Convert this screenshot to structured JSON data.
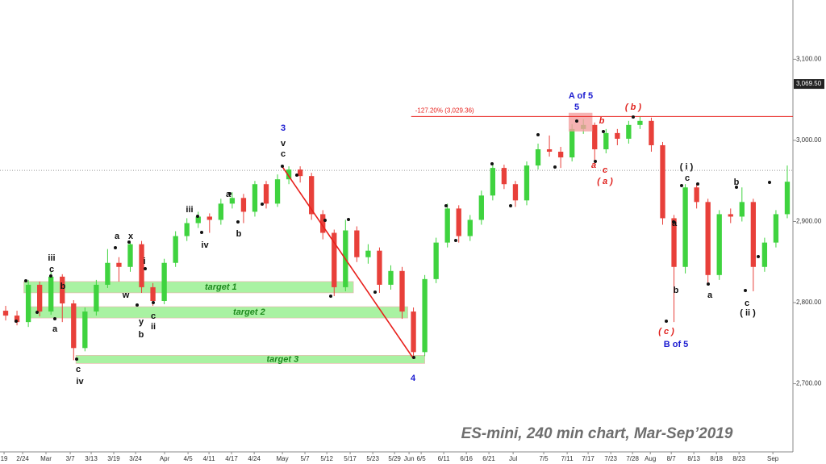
{
  "chart_data": {
    "type": "candlestick",
    "subtitle": "ES-mini, 240 min chart, Mar-Sep’2019",
    "up_color": "#3fd33f",
    "down_color": "#e8403a",
    "xlim": [
      0,
      70
    ],
    "ylim": [
      2616,
      3173
    ],
    "yticks": [
      {
        "value": 3100,
        "label": "3,100.00"
      },
      {
        "value": 3000,
        "label": "3,000.00"
      },
      {
        "value": 2900,
        "label": "2,900.00"
      },
      {
        "value": 2800,
        "label": "2,800.00"
      },
      {
        "value": 2700,
        "label": "2,700.00"
      }
    ],
    "xticks": [
      {
        "value": 0.36,
        "label": "19"
      },
      {
        "value": 2.0,
        "label": "2/24"
      },
      {
        "value": 4.06,
        "label": "Mar"
      },
      {
        "value": 6.2,
        "label": "3/7"
      },
      {
        "value": 8.05,
        "label": "3/13"
      },
      {
        "value": 10.04,
        "label": "3/19"
      },
      {
        "value": 11.97,
        "label": "3/24"
      },
      {
        "value": 14.53,
        "label": "Apr"
      },
      {
        "value": 16.6,
        "label": "4/5"
      },
      {
        "value": 18.45,
        "label": "4/11"
      },
      {
        "value": 20.44,
        "label": "4/17"
      },
      {
        "value": 22.44,
        "label": "4/24"
      },
      {
        "value": 24.93,
        "label": "May"
      },
      {
        "value": 26.92,
        "label": "5/7"
      },
      {
        "value": 28.85,
        "label": "5/12"
      },
      {
        "value": 30.91,
        "label": "5/17"
      },
      {
        "value": 32.91,
        "label": "5/23"
      },
      {
        "value": 34.83,
        "label": "5/29"
      },
      {
        "value": 36.11,
        "label": "Jun"
      },
      {
        "value": 37.18,
        "label": "6/5"
      },
      {
        "value": 39.17,
        "label": "6/11"
      },
      {
        "value": 41.17,
        "label": "6/16"
      },
      {
        "value": 43.16,
        "label": "6/21"
      },
      {
        "value": 45.3,
        "label": "Jul"
      },
      {
        "value": 48.0,
        "label": "7/5"
      },
      {
        "value": 50.07,
        "label": "7/11"
      },
      {
        "value": 51.92,
        "label": "7/17"
      },
      {
        "value": 53.92,
        "label": "7/23"
      },
      {
        "value": 55.84,
        "label": "7/28"
      },
      {
        "value": 57.41,
        "label": "Aug"
      },
      {
        "value": 59.26,
        "label": "8/7"
      },
      {
        "value": 61.25,
        "label": "8/13"
      },
      {
        "value": 63.25,
        "label": "8/18"
      },
      {
        "value": 65.24,
        "label": "8/23"
      },
      {
        "value": 68.23,
        "label": "Sep"
      }
    ],
    "open": [
      2790,
      2784,
      2776,
      2822,
      2789,
      2832,
      2799,
      2744,
      2789,
      2822,
      2849,
      2844,
      2872,
      2819,
      2802,
      2849,
      2882,
      2898,
      2906,
      2902,
      2922,
      2929,
      2912,
      2946,
      2922,
      2952,
      2964,
      2956,
      2909,
      2886,
      2819,
      2889,
      2856,
      2864,
      2822,
      2839,
      2789,
      2739,
      2829,
      2874,
      2916,
      2882,
      2902,
      2932,
      2966,
      2946,
      2926,
      2969,
      2989,
      2986,
      2979,
      3014,
      3019,
      2989,
      3009,
      3002,
      3019,
      3024,
      2994,
      2904,
      2844,
      2942,
      2924,
      2834,
      2909,
      2906,
      2924,
      2844,
      2874,
      2909
    ],
    "high": [
      2796,
      2790,
      2828,
      2826,
      2838,
      2835,
      2803,
      2794,
      2828,
      2866,
      2856,
      2874,
      2876,
      2824,
      2854,
      2888,
      2904,
      2912,
      2910,
      2928,
      2936,
      2934,
      2950,
      2950,
      2958,
      2968,
      2968,
      2960,
      2914,
      2890,
      2902,
      2894,
      2872,
      2868,
      2846,
      2844,
      2794,
      2834,
      2880,
      2922,
      2920,
      2908,
      2938,
      2972,
      2970,
      2950,
      2974,
      2996,
      3006,
      2992,
      3020,
      3026,
      3022,
      3014,
      3014,
      3024,
      3029,
      3028,
      2998,
      2908,
      2946,
      2946,
      2928,
      2914,
      2916,
      2942,
      2928,
      2880,
      2914,
      2969
    ],
    "low": [
      2778,
      2772,
      2770,
      2783,
      2785,
      2776,
      2729,
      2740,
      2784,
      2818,
      2826,
      2838,
      2812,
      2796,
      2798,
      2844,
      2876,
      2892,
      2886,
      2896,
      2916,
      2898,
      2906,
      2916,
      2918,
      2946,
      2948,
      2902,
      2878,
      2808,
      2814,
      2850,
      2848,
      2812,
      2816,
      2780,
      2732,
      2734,
      2824,
      2868,
      2874,
      2876,
      2896,
      2926,
      2940,
      2918,
      2920,
      2964,
      2980,
      2966,
      2974,
      3008,
      2974,
      2984,
      2994,
      2996,
      3014,
      2986,
      2896,
      2776,
      2836,
      2916,
      2822,
      2828,
      2898,
      2900,
      2814,
      2838,
      2868,
      2904
    ],
    "close": [
      2784,
      2776,
      2822,
      2789,
      2832,
      2799,
      2744,
      2789,
      2822,
      2849,
      2844,
      2872,
      2819,
      2802,
      2849,
      2882,
      2898,
      2906,
      2902,
      2922,
      2929,
      2912,
      2946,
      2922,
      2952,
      2964,
      2956,
      2909,
      2886,
      2819,
      2889,
      2856,
      2864,
      2822,
      2839,
      2789,
      2739,
      2829,
      2874,
      2916,
      2882,
      2902,
      2932,
      2966,
      2946,
      2926,
      2969,
      2989,
      2986,
      2979,
      3014,
      3019,
      2989,
      3009,
      3002,
      3019,
      3024,
      2994,
      2904,
      2844,
      2942,
      2924,
      2834,
      2909,
      2906,
      2924,
      2844,
      2874,
      2909,
      2949
    ],
    "last_price": {
      "value": 3069.5,
      "label": "3,069.50"
    },
    "reference_line": 2963,
    "fib_line": {
      "value": 3029.36,
      "label": "-127.20% (3,029.36)",
      "x": [
        36.3,
        70
      ],
      "color": "#e8201c"
    },
    "fib_box": {
      "x": [
        50.2,
        52.3
      ],
      "y": [
        3011,
        3034
      ],
      "color": "#f4a0a0"
    },
    "trendline": {
      "x": [
        24.9,
        36.5
      ],
      "y": [
        2968,
        2731
      ],
      "color": "#e8201c"
    },
    "zones": [
      {
        "label": "target 1",
        "x": [
          2.1,
          31.2
        ],
        "y": [
          2812,
          2826
        ]
      },
      {
        "label": "target 2",
        "x": [
          2.3,
          36.0
        ],
        "y": [
          2781,
          2795
        ]
      },
      {
        "label": "target 3",
        "x": [
          6.7,
          37.5
        ],
        "y": [
          2725,
          2735
        ]
      }
    ],
    "annotations": [
      {
        "text": "iii",
        "color": "#111"
      },
      {
        "text": "c",
        "color": "#111"
      },
      {
        "text": "b",
        "color": "#111"
      },
      {
        "text": "a",
        "color": "#111"
      },
      {
        "text": "c",
        "color": "#111"
      },
      {
        "text": "iv",
        "color": "#111"
      },
      {
        "text": "a",
        "color": "#111"
      },
      {
        "text": "x",
        "color": "#111"
      },
      {
        "text": "w",
        "color": "#111"
      },
      {
        "text": "i",
        "color": "#111"
      },
      {
        "text": "y",
        "color": "#111"
      },
      {
        "text": "b",
        "color": "#111"
      },
      {
        "text": "c",
        "color": "#111"
      },
      {
        "text": "ii",
        "color": "#111"
      },
      {
        "text": "iii",
        "color": "#111"
      },
      {
        "text": "iv",
        "color": "#111"
      },
      {
        "text": "a",
        "color": "#111"
      },
      {
        "text": "b",
        "color": "#111"
      },
      {
        "text": "3",
        "color": "#1a1ad0"
      },
      {
        "text": "v",
        "color": "#111"
      },
      {
        "text": "c",
        "color": "#111"
      },
      {
        "text": "4",
        "color": "#1a1ad0"
      },
      {
        "text": "A of 5",
        "color": "#1a1ad0"
      },
      {
        "text": "5",
        "color": "#1a1ad0"
      },
      {
        "text": "( b )",
        "color": "#e0201c"
      },
      {
        "text": "b",
        "color": "#e0201c"
      },
      {
        "text": "a",
        "color": "#e0201c"
      },
      {
        "text": "c",
        "color": "#e0201c"
      },
      {
        "text": "( a )",
        "color": "#e0201c"
      },
      {
        "text": "( i )",
        "color": "#111"
      },
      {
        "text": "c",
        "color": "#111"
      },
      {
        "text": "a",
        "color": "#111"
      },
      {
        "text": "b",
        "color": "#111"
      },
      {
        "text": "a",
        "color": "#111"
      },
      {
        "text": "( c )",
        "color": "#e0201c"
      },
      {
        "text": "B of 5",
        "color": "#1a1ad0"
      },
      {
        "text": "b",
        "color": "#111"
      },
      {
        "text": "c",
        "color": "#111"
      },
      {
        "text": "( ii )",
        "color": "#111"
      }
    ]
  }
}
